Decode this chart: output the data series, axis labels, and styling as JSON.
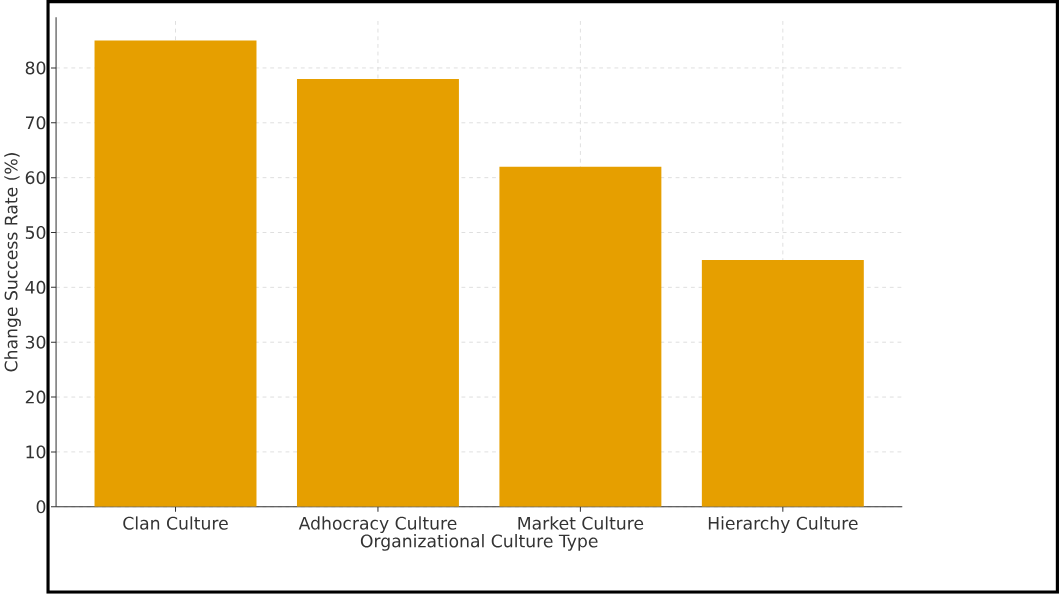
{
  "chart_data": {
    "type": "bar",
    "xlabel": "Organizational Culture Type",
    "ylabel": "Change Success Rate (%)",
    "categories": [
      "Clan Culture",
      "Adhocracy Culture",
      "Market Culture",
      "Hierarchy Culture"
    ],
    "values": [
      85,
      78,
      62,
      45
    ],
    "color": "#e69f00",
    "ylim": [
      0,
      89.25
    ],
    "yticks": [
      0,
      10,
      20,
      30,
      40,
      50,
      60,
      70,
      80
    ],
    "grid": true
  }
}
